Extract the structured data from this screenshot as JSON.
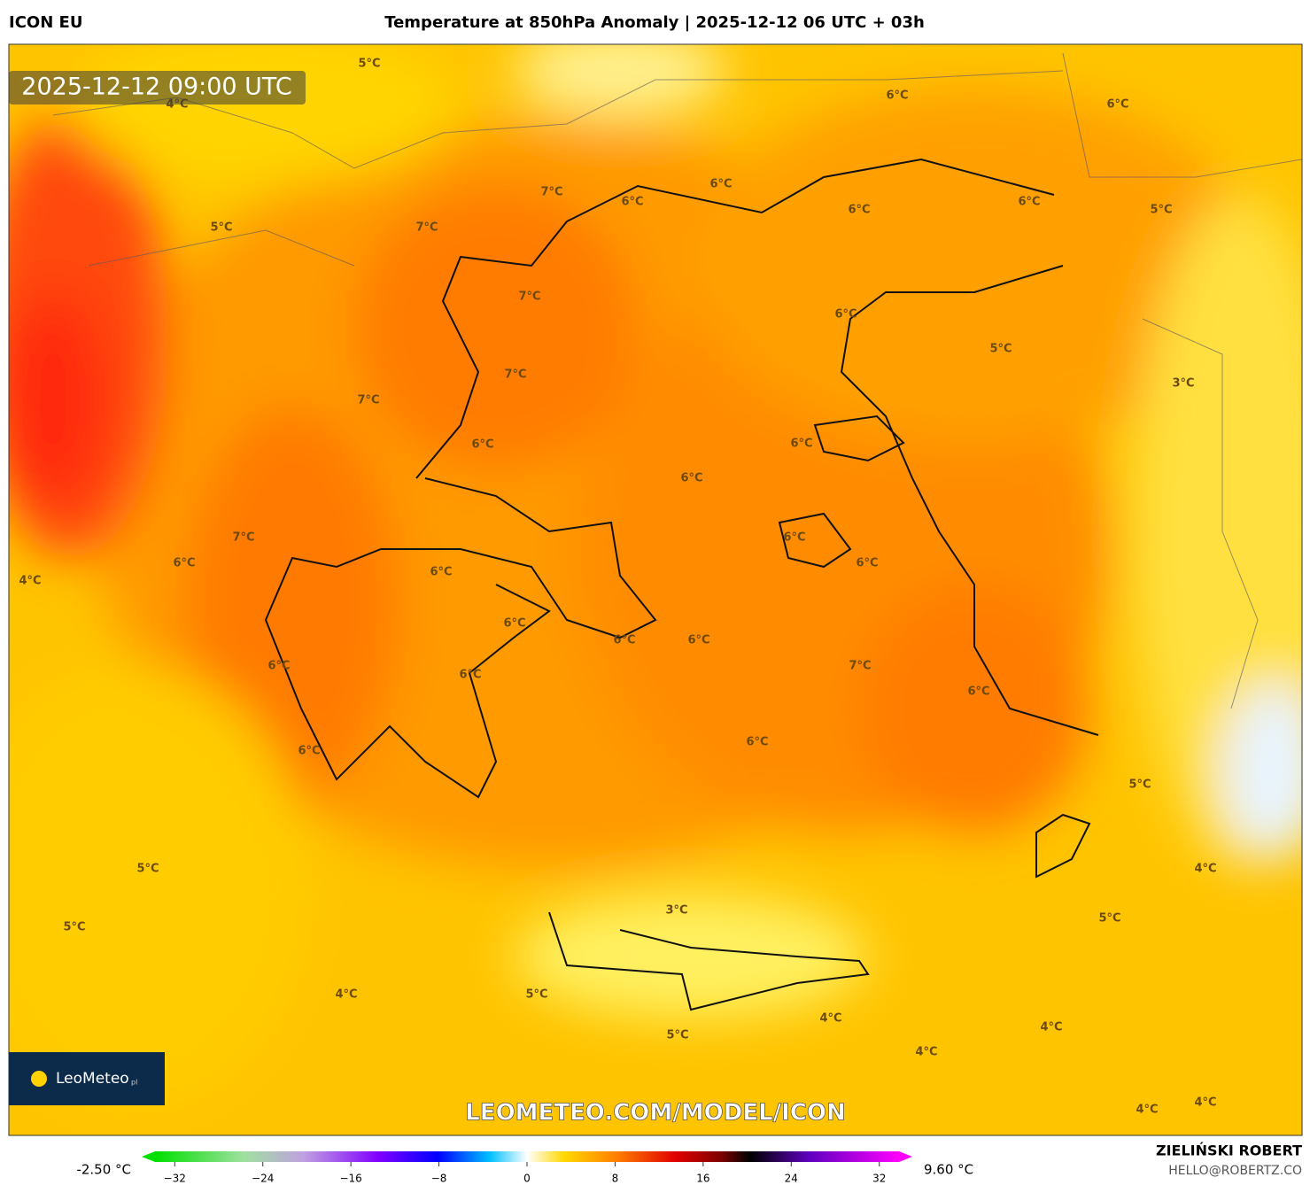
{
  "header": {
    "model": "ICON EU",
    "title": "Temperature at 850hPa Anomaly | 2025-12-12 06 UTC + 03h",
    "author": "ZIELIŃSKI ROBERT",
    "email": "HELLO@ROBERTZ.CO"
  },
  "map": {
    "timestamp": "2025-12-12 09:00 UTC",
    "logo": "LeoMeteo",
    "logo_suffix": "pl",
    "watermark": "LEOMETEO.COM/MODEL/ICON",
    "contour_labels": [
      "5°C",
      "4°C",
      "6°C",
      "6°C",
      "7°C",
      "6°C",
      "6°C",
      "6°C",
      "6°C",
      "5°C",
      "5°C",
      "7°C",
      "7°C",
      "6°C",
      "5°C",
      "7°C",
      "3°C",
      "7°C",
      "6°C",
      "6°C",
      "6°C",
      "7°C",
      "6°C",
      "6°C",
      "6°C",
      "4°C",
      "6°C",
      "6°C",
      "6°C",
      "6°C",
      "6°C",
      "7°C",
      "6°C",
      "6°C",
      "6°C",
      "6°C",
      "5°C",
      "5°C",
      "4°C",
      "3°C",
      "5°C",
      "5°C",
      "4°C",
      "5°C",
      "4°C",
      "4°C",
      "5°C",
      "4°C",
      "4°C",
      "4°C"
    ]
  },
  "colorbar": {
    "min_label": "-2.50 °C",
    "max_label": "9.60 °C",
    "lim": [
      -35,
      35
    ],
    "ticks": [
      {
        "value": -32,
        "label": "−32"
      },
      {
        "value": -24,
        "label": "−24"
      },
      {
        "value": -16,
        "label": "−16"
      },
      {
        "value": -8,
        "label": "−8"
      },
      0,
      8,
      16,
      24,
      32
    ]
  }
}
